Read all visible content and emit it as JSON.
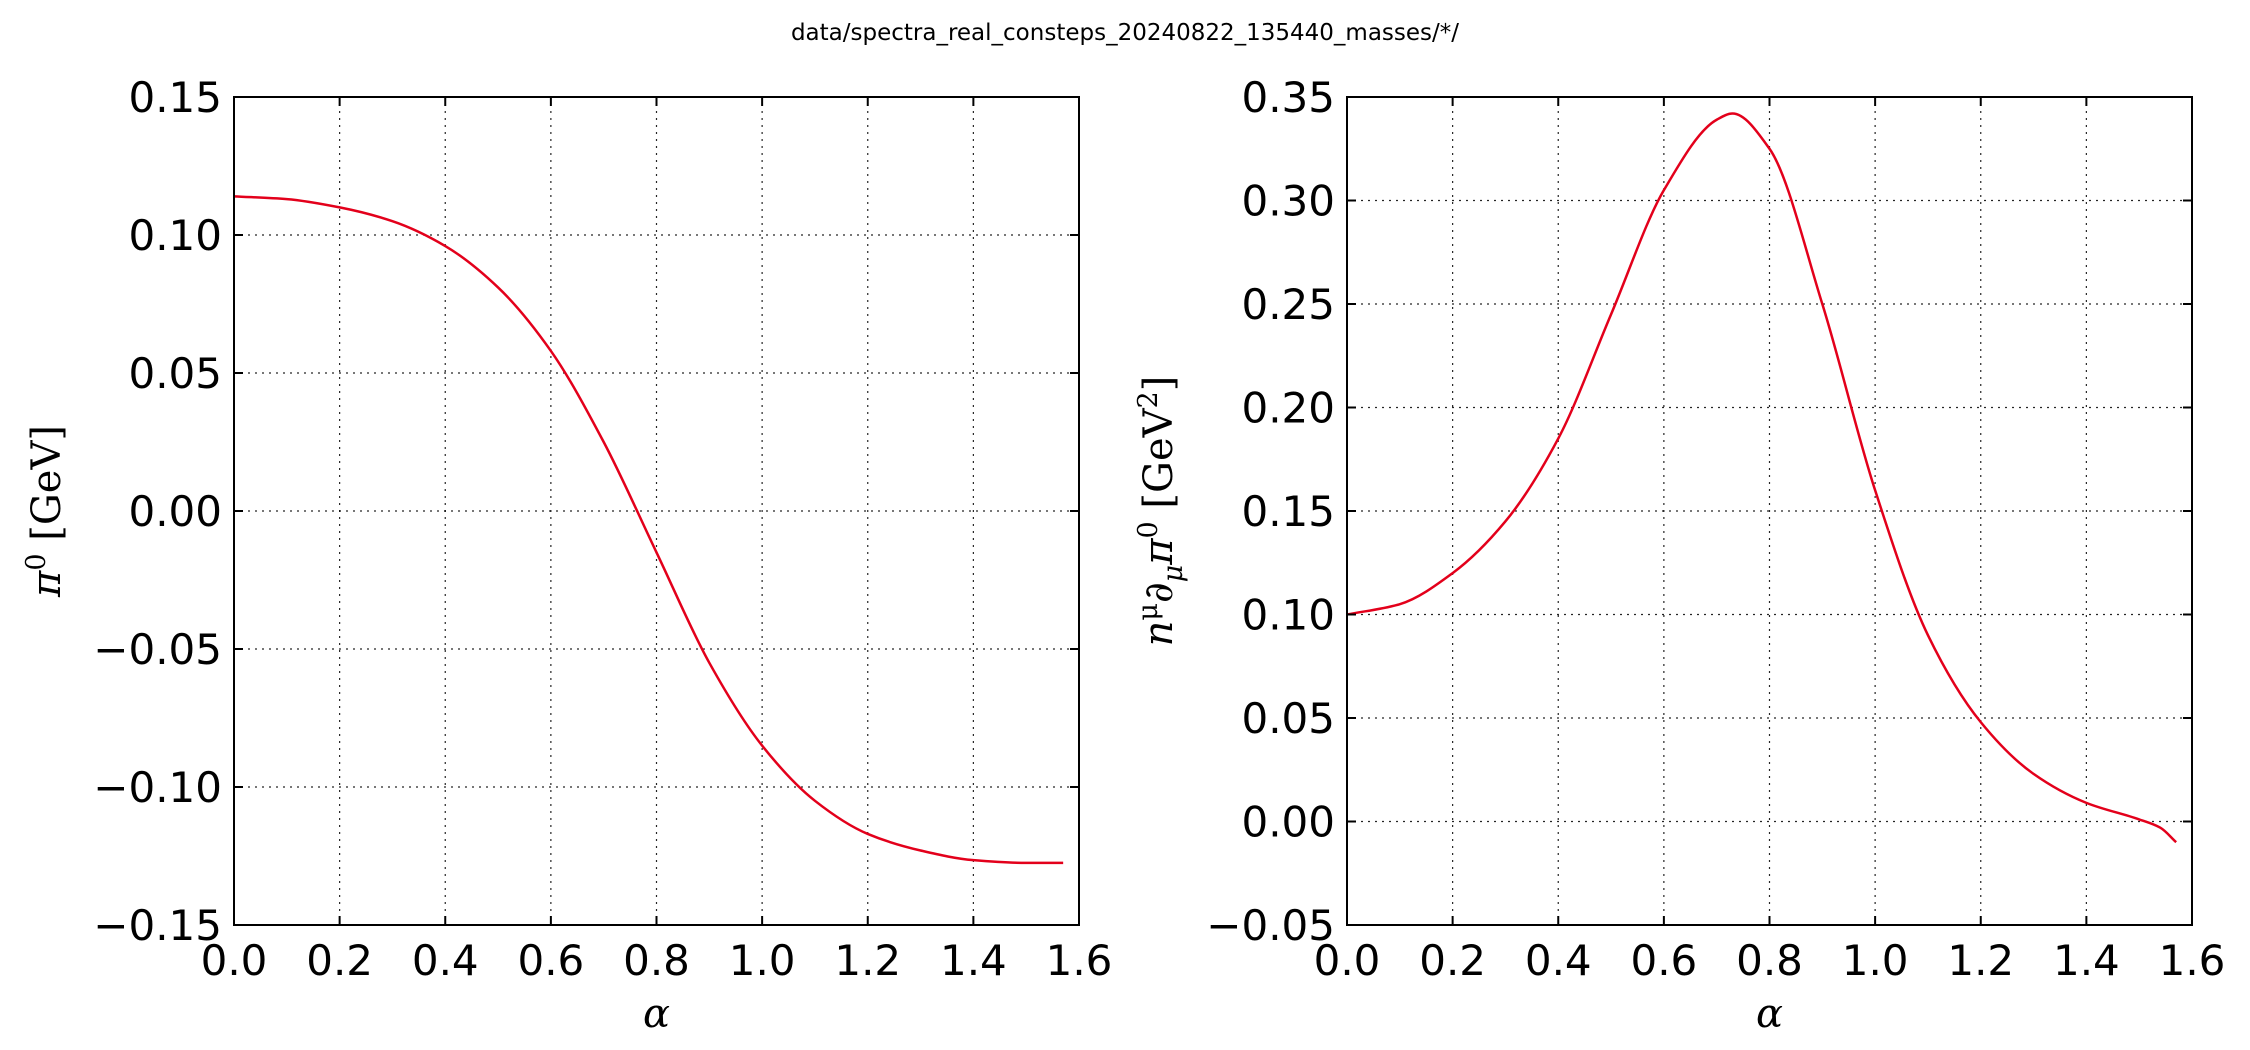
{
  "figure": {
    "suptitle": "data/spectra_real_consteps_20240822_135440_masses/*/",
    "line_color": "#e3001b"
  },
  "chart_data": [
    {
      "type": "line",
      "xlabel": "α",
      "ylabel_parts": {
        "sym": "π",
        "sup": "0",
        "unit": " [GeV]"
      },
      "xlim": [
        0.0,
        1.6
      ],
      "ylim": [
        -0.15,
        0.15
      ],
      "xticks": [
        0.0,
        0.2,
        0.4,
        0.6,
        0.8,
        1.0,
        1.2,
        1.4,
        1.6
      ],
      "xtick_labels": [
        "0.0",
        "0.2",
        "0.4",
        "0.6",
        "0.8",
        "1.0",
        "1.2",
        "1.4",
        "1.6"
      ],
      "yticks": [
        -0.15,
        -0.1,
        -0.05,
        0.0,
        0.05,
        0.1,
        0.15
      ],
      "ytick_labels": [
        "−0.15",
        "−0.10",
        "−0.05",
        "0.00",
        "0.05",
        "0.10",
        "0.15"
      ],
      "grid": true,
      "x": [
        0.0,
        0.1,
        0.2,
        0.3,
        0.4,
        0.5,
        0.6,
        0.7,
        0.8,
        0.9,
        1.0,
        1.1,
        1.2,
        1.3,
        1.4,
        1.5,
        1.57
      ],
      "y": [
        0.114,
        0.113,
        0.11,
        0.105,
        0.096,
        0.081,
        0.058,
        0.025,
        -0.015,
        -0.055,
        -0.085,
        -0.105,
        -0.117,
        -0.123,
        -0.1265,
        -0.1275,
        -0.1275
      ]
    },
    {
      "type": "line",
      "xlabel": "α",
      "ylabel_parts": {
        "sym": "n",
        "sup": "μ",
        "sym2": "∂",
        "sub": "μ",
        "sym3": "π",
        "sup2": "0",
        "unit": " [GeV",
        "unit_sup": "2",
        "unit_end": "]"
      },
      "xlim": [
        0.0,
        1.6
      ],
      "ylim": [
        -0.05,
        0.35
      ],
      "xticks": [
        0.0,
        0.2,
        0.4,
        0.6,
        0.8,
        1.0,
        1.2,
        1.4,
        1.6
      ],
      "xtick_labels": [
        "0.0",
        "0.2",
        "0.4",
        "0.6",
        "0.8",
        "1.0",
        "1.2",
        "1.4",
        "1.6"
      ],
      "yticks": [
        -0.05,
        0.0,
        0.05,
        0.1,
        0.15,
        0.2,
        0.25,
        0.3,
        0.35
      ],
      "ytick_labels": [
        "−0.05",
        "0.00",
        "0.05",
        "0.10",
        "0.15",
        "0.20",
        "0.25",
        "0.30",
        "0.35"
      ],
      "grid": true,
      "x": [
        0.0,
        0.1,
        0.2,
        0.3,
        0.4,
        0.5,
        0.6,
        0.7,
        0.73,
        0.8,
        0.9,
        1.0,
        1.1,
        1.2,
        1.3,
        1.4,
        1.5,
        1.54,
        1.57
      ],
      "y": [
        0.1,
        0.105,
        0.12,
        0.145,
        0.185,
        0.245,
        0.305,
        0.339,
        0.342,
        0.325,
        0.25,
        0.16,
        0.09,
        0.048,
        0.023,
        0.009,
        0.001,
        -0.003,
        -0.01
      ]
    }
  ]
}
